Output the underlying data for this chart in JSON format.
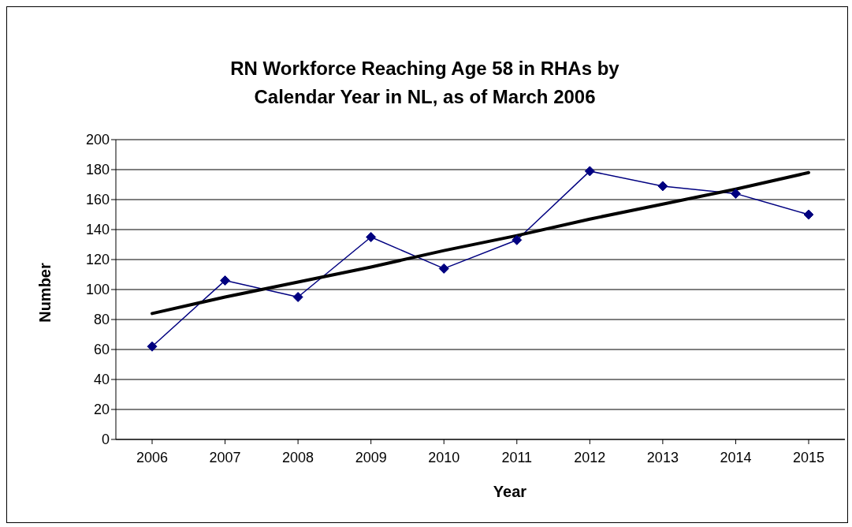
{
  "chart_data": {
    "type": "line",
    "title": "RN Workforce Reaching Age 58 in RHAs by Calendar Year in NL, as of March 2006",
    "xlabel": "Year",
    "ylabel": "Number",
    "categories": [
      "2006",
      "2007",
      "2008",
      "2009",
      "2010",
      "2011",
      "2012",
      "2013",
      "2014",
      "2015"
    ],
    "series": [
      {
        "color": "#000080",
        "marker": "diamond",
        "values": [
          62,
          106,
          95,
          135,
          114,
          133,
          179,
          169,
          164,
          150
        ]
      },
      {
        "color": "#000000",
        "marker": "none",
        "values": [
          84,
          95,
          105,
          115,
          126,
          136,
          147,
          157,
          167,
          178
        ]
      }
    ],
    "ylim": [
      0,
      200
    ],
    "yticks": [
      0,
      20,
      40,
      60,
      80,
      100,
      120,
      140,
      160,
      180,
      200
    ],
    "grid": "y",
    "line_style": "solid"
  }
}
